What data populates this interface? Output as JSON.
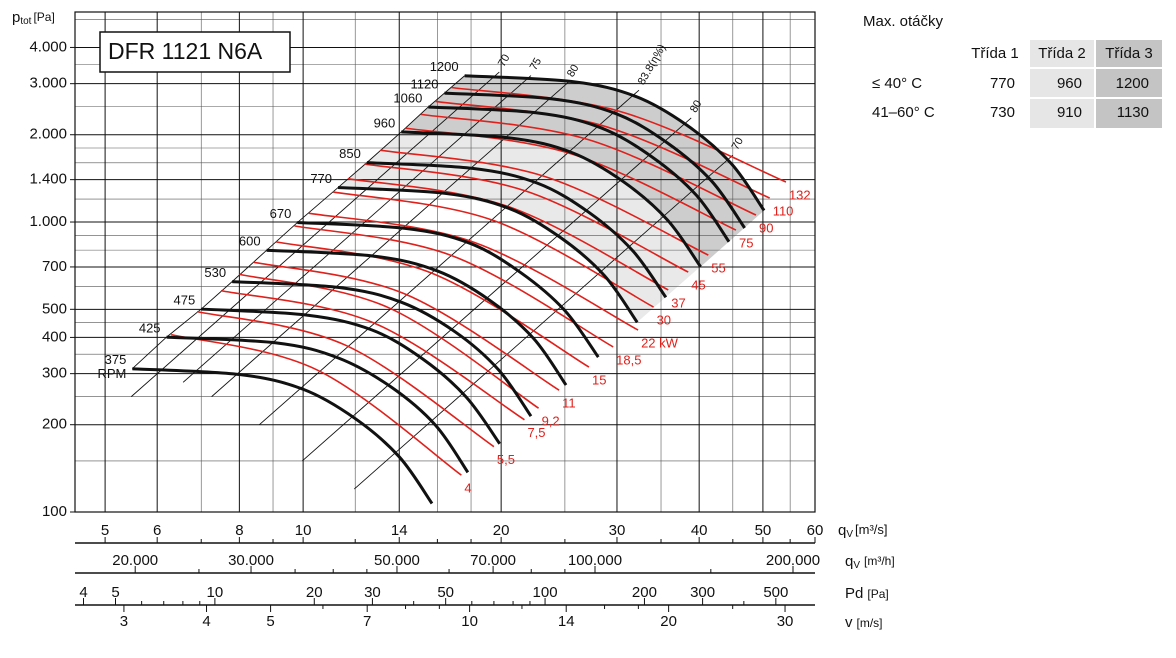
{
  "chart_data": {
    "type": "line",
    "title": "DFR 1121 N6A",
    "xlog": true,
    "ylog": true,
    "grid": true,
    "ylabel": {
      "main": "p",
      "sub": "tot",
      "unit": "[Pa]"
    },
    "xlabel": {
      "main": "q",
      "sub": "V",
      "unit": "[m³/s]"
    },
    "xlim": [
      4.5,
      60
    ],
    "xticks": [
      5,
      6,
      8,
      10,
      14,
      20,
      30,
      40,
      50,
      60
    ],
    "xminor": [
      7,
      9,
      12,
      16,
      18,
      25,
      35,
      45,
      55
    ],
    "ylim": [
      100,
      5300
    ],
    "yticks": [
      {
        "value": 4000,
        "label": "4.000"
      },
      {
        "value": 3000,
        "label": "3.000"
      },
      {
        "value": 2000,
        "label": "2.000"
      },
      {
        "value": 1400,
        "label": "1.400"
      },
      {
        "value": 1000,
        "label": "1.000"
      },
      700,
      500,
      400,
      300,
      200,
      100
    ],
    "yminor": [
      150,
      250,
      350,
      450,
      600,
      800,
      900,
      1200,
      1600,
      1800,
      2500,
      3500,
      5000
    ],
    "rpm_unit": "RPM",
    "series": [
      {
        "name": "375",
        "color": "#111111",
        "x": [
          5.5,
          8,
          10,
          12,
          14,
          15.7
        ],
        "values": [
          312,
          298,
          265,
          210,
          155,
          107
        ]
      },
      {
        "name": "425",
        "color": "#111111",
        "x": [
          6.2,
          9.1,
          11.3,
          13.6,
          15.9,
          17.8
        ],
        "values": [
          401,
          383,
          340,
          270,
          199,
          137
        ]
      },
      {
        "name": "475",
        "color": "#111111",
        "x": [
          7.0,
          10.1,
          12.7,
          15.2,
          17.7,
          19.9
        ],
        "values": [
          501,
          478,
          425,
          337,
          249,
          172
        ]
      },
      {
        "name": "530",
        "color": "#111111",
        "x": [
          7.8,
          11.3,
          14.1,
          17.0,
          19.8,
          22.2
        ],
        "values": [
          623,
          595,
          529,
          419,
          310,
          214
        ]
      },
      {
        "name": "600",
        "color": "#111111",
        "x": [
          8.8,
          12.8,
          16,
          19.2,
          22.4,
          25.1
        ],
        "values": [
          799,
          763,
          678,
          538,
          397,
          274
        ]
      },
      {
        "name": "670",
        "color": "#111111",
        "x": [
          9.8,
          14.3,
          17.9,
          21.4,
          25.0,
          28.1
        ],
        "values": [
          996,
          951,
          846,
          670,
          495,
          342
        ]
      },
      {
        "name": "770",
        "color": "#111111",
        "x": [
          11.3,
          16.4,
          20.5,
          24.6,
          28.7,
          32.2
        ],
        "values": [
          1315,
          1256,
          1117,
          885,
          654,
          451
        ]
      },
      {
        "name": "850",
        "color": "#111111",
        "x": [
          12.5,
          18.1,
          22.7,
          27.2,
          31.7,
          35.6
        ],
        "values": [
          1603,
          1531,
          1362,
          1079,
          796,
          550
        ]
      },
      {
        "name": "960",
        "color": "#111111",
        "x": [
          14.1,
          20.5,
          25.6,
          30.7,
          35.8,
          40.2
        ],
        "values": [
          2045,
          1953,
          1737,
          1376,
          1016,
          701
        ]
      },
      {
        "name": "1060",
        "color": "#111111",
        "x": [
          15.5,
          22.6,
          28.3,
          33.9,
          39.6,
          44.4
        ],
        "values": [
          2493,
          2381,
          2117,
          1678,
          1238,
          855
        ]
      },
      {
        "name": "1120",
        "color": "#111111",
        "x": [
          16.4,
          23.9,
          29.9,
          35.8,
          41.8,
          46.9
        ],
        "values": [
          2783,
          2658,
          2364,
          1873,
          1383,
          954
        ]
      },
      {
        "name": "1200",
        "color": "#111111",
        "x": [
          17.6,
          25.6,
          32,
          38.4,
          44.8,
          50.2
        ],
        "values": [
          3195,
          3052,
          2714,
          2150,
          1587,
          1096
        ]
      }
    ],
    "power_curves": [
      {
        "name": "4",
        "color": "#e0201b",
        "x": [
          6.3,
          10.5,
          17.4
        ],
        "values": [
          409,
          309,
          134
        ]
      },
      {
        "name": "5,5",
        "color": "#e0201b",
        "x": [
          6.9,
          11.6,
          19.5
        ],
        "values": [
          491,
          376,
          168
        ]
      },
      {
        "name": "7,5",
        "color": "#e0201b",
        "x": [
          7.5,
          12.8,
          21.7
        ],
        "values": [
          580,
          449,
          208
        ]
      },
      {
        "name": "9,2",
        "color": "#e0201b",
        "x": [
          8.0,
          13.5,
          22.8
        ],
        "values": [
          660,
          506,
          228
        ]
      },
      {
        "name": "11",
        "color": "#e0201b",
        "x": [
          8.4,
          14.3,
          24.5
        ],
        "values": [
          727,
          564,
          263
        ]
      },
      {
        "name": "15",
        "color": "#e0201b",
        "x": [
          9.1,
          15.7,
          27.2
        ],
        "values": [
          854,
          666,
          316
        ]
      },
      {
        "name": "18,5",
        "color": "#e0201b",
        "x": [
          9.7,
          16.9,
          29.6
        ],
        "values": [
          970,
          763,
          371
        ]
      },
      {
        "name": "22 kW",
        "color": "#e0201b",
        "x": [
          10.2,
          18.2,
          32.3
        ],
        "values": [
          1073,
          851,
          424
        ]
      },
      {
        "name": "30",
        "color": "#e0201b",
        "x": [
          11.1,
          19.5,
          34.1
        ],
        "values": [
          1270,
          1011,
          509
        ]
      },
      {
        "name": "37",
        "color": "#e0201b",
        "x": [
          11.7,
          20.5,
          35.9
        ],
        "values": [
          1411,
          1131,
          583
        ]
      },
      {
        "name": "45",
        "color": "#e0201b",
        "x": [
          12.4,
          21.8,
          38.5
        ],
        "values": [
          1585,
          1279,
          672
        ]
      },
      {
        "name": "55",
        "color": "#e0201b",
        "x": [
          13.1,
          23.3,
          41.3
        ],
        "values": [
          1769,
          1436,
          769
        ]
      },
      {
        "name": "75",
        "color": "#e0201b",
        "x": [
          14.3,
          25.5,
          45.5
        ],
        "values": [
          2108,
          1722,
          938
        ]
      },
      {
        "name": "90",
        "color": "#e0201b",
        "x": [
          15.1,
          27.1,
          48.8
        ],
        "values": [
          2351,
          1925,
          1057
        ]
      },
      {
        "name": "110",
        "color": "#e0201b",
        "x": [
          15.9,
          28.5,
          51.2
        ],
        "values": [
          2606,
          2151,
          1210
        ]
      },
      {
        "name": "132",
        "color": "#e0201b",
        "x": [
          16.8,
          30.2,
          54.2
        ],
        "values": [
          2910,
          2412,
          1374
        ]
      }
    ],
    "efficiency_lines": [
      {
        "name": "70",
        "x": [
          5.48,
          19.87
        ],
        "values": [
          250,
          3289
        ]
      },
      {
        "name": "75",
        "x": [
          6.57,
          22.2
        ],
        "values": [
          280,
          3200
        ]
      },
      {
        "name": "80",
        "x": [
          7.26,
          25.3
        ],
        "values": [
          250,
          3033
        ]
      },
      {
        "name": "83.8(η%)",
        "x": [
          8.58,
          32.4
        ],
        "values": [
          200,
          2849
        ]
      },
      {
        "name": "80",
        "x": [
          9.97,
          38.9
        ],
        "values": [
          150,
          2285
        ]
      },
      {
        "name": "70",
        "x": [
          11.96,
          45.0
        ],
        "values": [
          120,
          1700
        ]
      }
    ],
    "x_axes": [
      {
        "label": {
          "main": "q",
          "sub": "V",
          "unit": "[m³/h]"
        },
        "lim": [
          16200,
          216000
        ],
        "ticks": [
          {
            "value": 20000,
            "label": "20.000"
          },
          {
            "value": 30000,
            "label": "30.000"
          },
          {
            "value": 50000,
            "label": "50.000"
          },
          {
            "value": 70000,
            "label": "70.000"
          },
          {
            "value": 100000,
            "label": "100.000"
          },
          {
            "value": 200000,
            "label": "200.000"
          }
        ],
        "minor": [
          25000,
          35000,
          40000,
          45000,
          60000,
          80000,
          90000,
          150000
        ]
      },
      {
        "label": {
          "main": "Pd",
          "unit": "[Pa]"
        },
        "lim": [
          3.77,
          657
        ],
        "ticks": [
          4,
          5,
          10,
          20,
          30,
          50,
          100,
          200,
          300,
          500
        ],
        "minor": [
          6,
          7,
          8,
          9,
          40,
          60,
          70,
          80,
          90,
          400
        ]
      },
      {
        "label": {
          "main": "v",
          "unit": "[m/s]"
        },
        "lim": [
          2.53,
          33.3
        ],
        "ticks": [
          3,
          4,
          5,
          7,
          10,
          14,
          20,
          30
        ],
        "minor": [
          6,
          8,
          9,
          12,
          16,
          18,
          25
        ]
      }
    ]
  },
  "table": {
    "title": "Max. otáčky",
    "columns": [
      "Třída 1",
      "Třída 2",
      "Třída 3"
    ],
    "rows": [
      {
        "label": "≤ 40° C",
        "values": [
          770,
          960,
          1200
        ]
      },
      {
        "label": "41–60° C",
        "values": [
          730,
          910,
          1130
        ]
      }
    ]
  }
}
